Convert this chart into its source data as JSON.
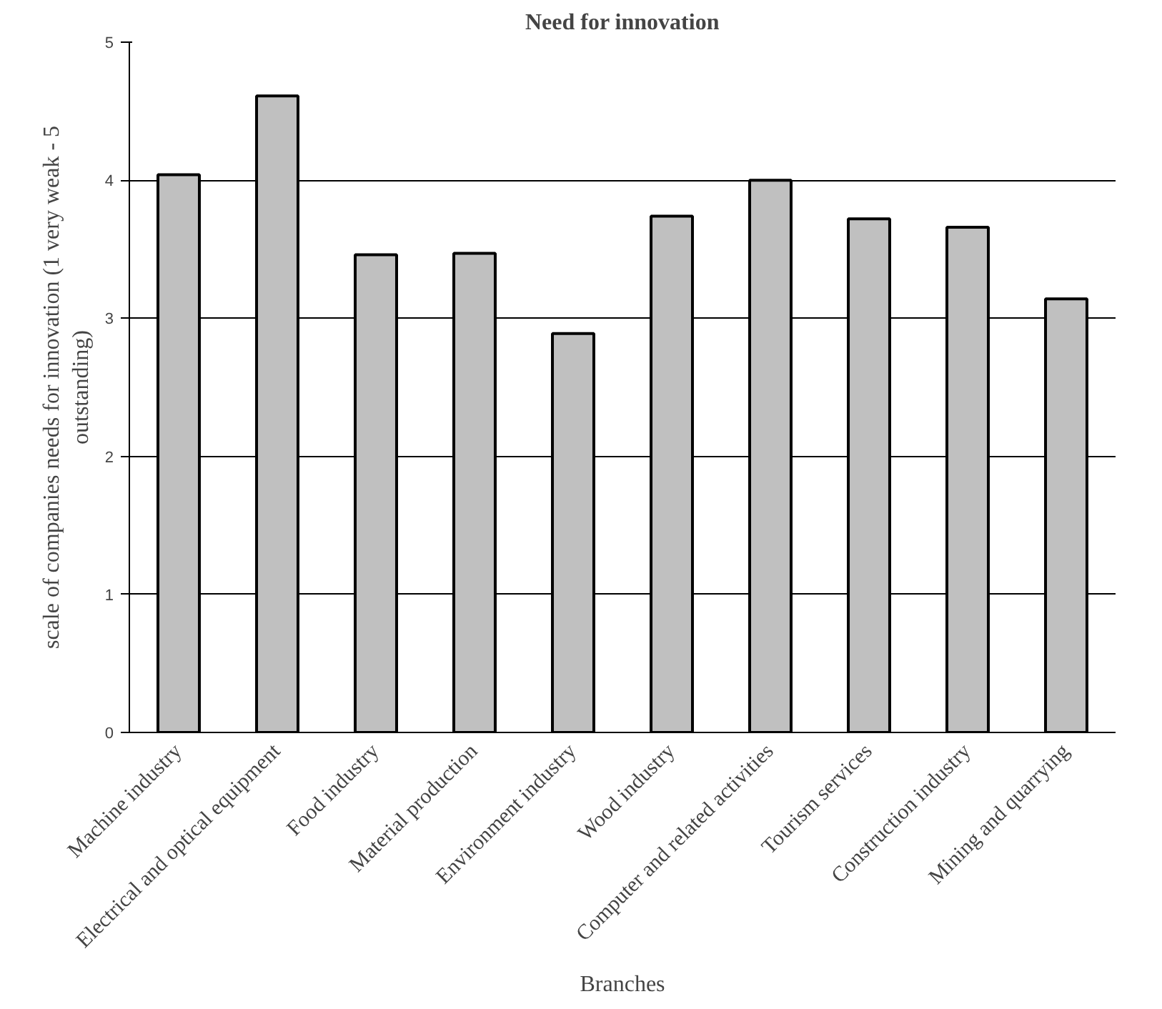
{
  "chart_data": {
    "type": "bar",
    "title": "Need for innovation",
    "xlabel": "Branches",
    "ylabel": "scale of companies needs for innovation (1 very weak - 5 outstanding)",
    "categories": [
      "Machine industry",
      "Electrical and optical equipment",
      "Food industry",
      "Material production",
      "Environment industry",
      "Wood industry",
      "Computer and related activities",
      "Tourism services",
      "Construction industry",
      "Mining and quarrying"
    ],
    "values": [
      4.04,
      4.61,
      3.46,
      3.47,
      2.89,
      3.74,
      4.0,
      3.72,
      3.66,
      3.14
    ],
    "color": "#c0c0c0",
    "ylim": [
      0,
      5
    ],
    "yticks": [
      0,
      1,
      2,
      3,
      4,
      5
    ],
    "grid": "y"
  }
}
